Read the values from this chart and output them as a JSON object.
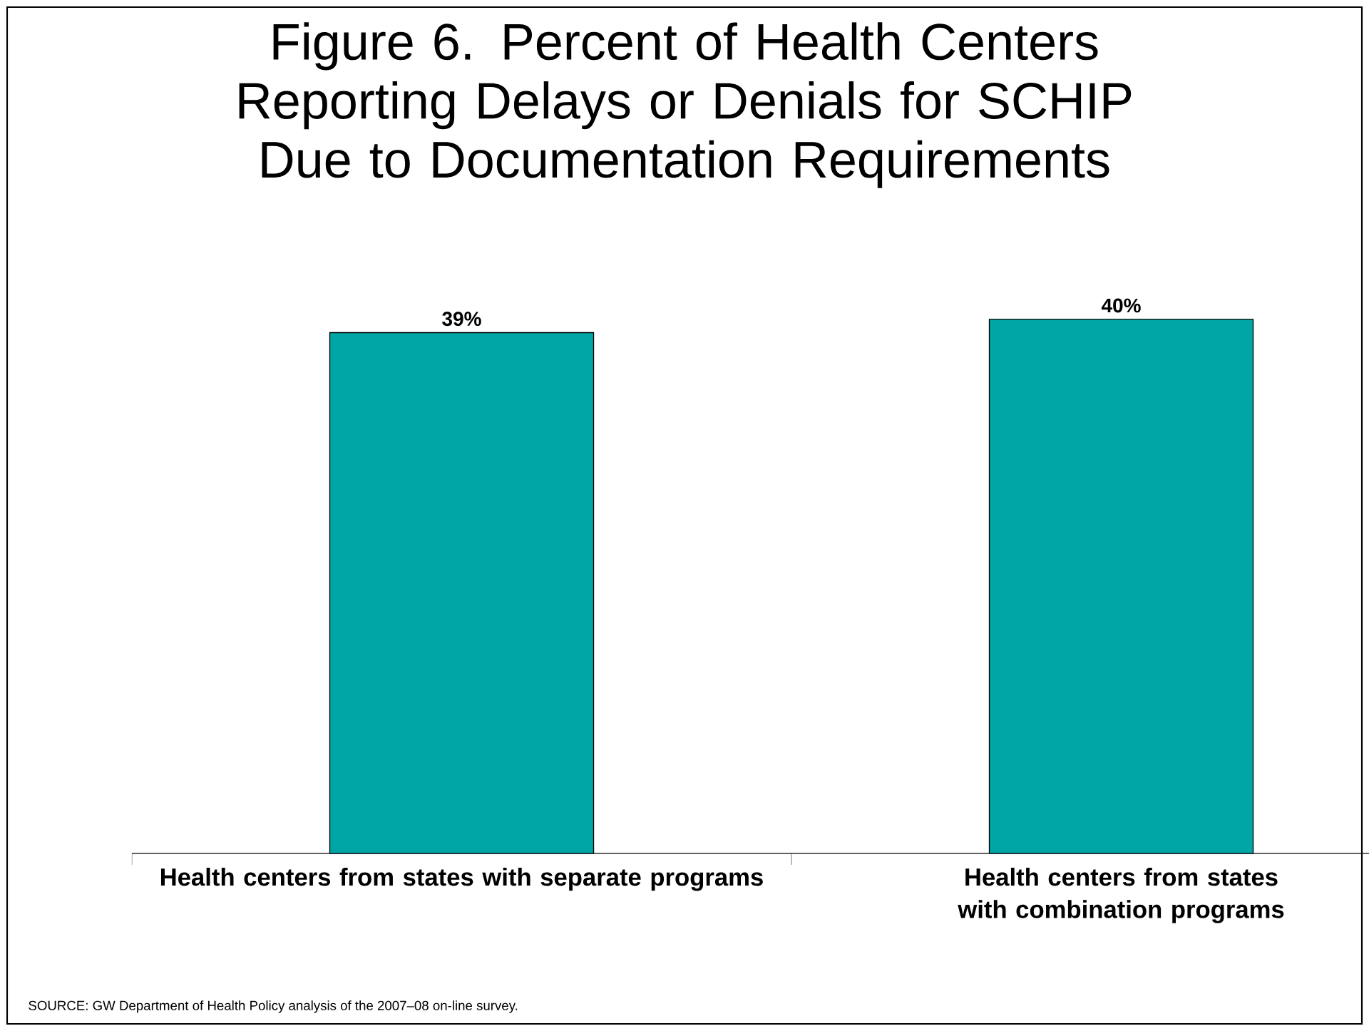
{
  "chart_data": {
    "type": "bar",
    "title": "Figure 6. Percent of Health Centers Reporting Delays or Denials for SCHIP Due to Documentation Requirements",
    "categories": [
      "Health centers from states with separate programs",
      "Health centers from states with combination programs"
    ],
    "values": [
      39,
      40
    ],
    "value_labels": [
      "39%",
      "40%"
    ],
    "color": "#00a6a6",
    "annotations": [
      "SOURCE: GW Department of Health Policy analysis of the 2007–08 on-line survey."
    ]
  }
}
